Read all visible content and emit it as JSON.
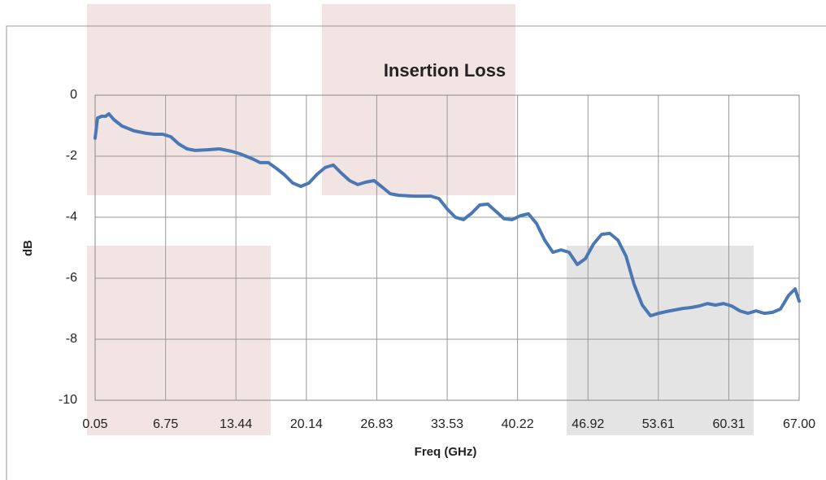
{
  "chart_data": {
    "type": "line",
    "title": "Insertion Loss",
    "xlabel": "Freq (GHz)",
    "ylabel": "dB",
    "xlim": [
      0.05,
      67
    ],
    "ylim": [
      -10,
      0
    ],
    "xticks": [
      0.05,
      6.75,
      13.44,
      20.14,
      26.83,
      33.53,
      40.22,
      46.92,
      53.61,
      60.31,
      {
        "value": 67,
        "label": "67.00"
      }
    ],
    "yticks": [
      0,
      -2,
      -4,
      -6,
      -8,
      -10
    ],
    "grid": true,
    "series": [
      {
        "name": "Insertion Loss",
        "color": "#4a78b5",
        "x": [
          0.05,
          0.28,
          0.67,
          1.06,
          1.36,
          1.83,
          2.6,
          3.76,
          4.92,
          5.69,
          6.47,
          7.24,
          8.01,
          8.79,
          9.56,
          10.72,
          11.88,
          13.04,
          13.81,
          14.97,
          15.74,
          16.52,
          17.29,
          18.06,
          18.84,
          19.61,
          20.38,
          21.16,
          21.93,
          22.7,
          23.48,
          24.25,
          25.02,
          25.79,
          26.57,
          27.34,
          28.11,
          28.89,
          30.43,
          31.98,
          32.75,
          33.53,
          34.3,
          35.07,
          35.85,
          36.62,
          37.39,
          38.17,
          38.94,
          39.71,
          40.49,
          41.26,
          42.03,
          42.8,
          43.58,
          44.35,
          45.12,
          45.9,
          46.67,
          47.44,
          48.22,
          48.99,
          49.76,
          50.54,
          51.31,
          52.08,
          52.86,
          53.63,
          54.4,
          55.17,
          55.95,
          56.72,
          57.49,
          58.27,
          59.04,
          59.81,
          60.58,
          61.36,
          62.13,
          62.9,
          63.68,
          64.45,
          65.22,
          66.0,
          66.61,
          67.0
        ],
        "values": [
          -1.41,
          -0.75,
          -0.69,
          -0.69,
          -0.61,
          -0.8,
          -1.01,
          -1.17,
          -1.25,
          -1.28,
          -1.28,
          -1.36,
          -1.6,
          -1.76,
          -1.81,
          -1.79,
          -1.76,
          -1.84,
          -1.92,
          -2.08,
          -2.21,
          -2.21,
          -2.4,
          -2.61,
          -2.88,
          -2.99,
          -2.88,
          -2.59,
          -2.37,
          -2.29,
          -2.56,
          -2.8,
          -2.93,
          -2.85,
          -2.8,
          -3.01,
          -3.23,
          -3.28,
          -3.31,
          -3.31,
          -3.39,
          -3.73,
          -4.0,
          -4.08,
          -3.87,
          -3.6,
          -3.57,
          -3.81,
          -4.05,
          -4.08,
          -3.95,
          -3.89,
          -4.21,
          -4.75,
          -5.15,
          -5.07,
          -5.15,
          -5.55,
          -5.36,
          -4.88,
          -4.56,
          -4.53,
          -4.75,
          -5.28,
          -6.21,
          -6.88,
          -7.23,
          -7.15,
          -7.09,
          -7.04,
          -6.99,
          -6.96,
          -6.91,
          -6.83,
          -6.88,
          -6.83,
          -6.91,
          -7.07,
          -7.15,
          -7.07,
          -7.15,
          -7.12,
          -7.01,
          -6.56,
          -6.35,
          -6.75
        ]
      }
    ]
  }
}
